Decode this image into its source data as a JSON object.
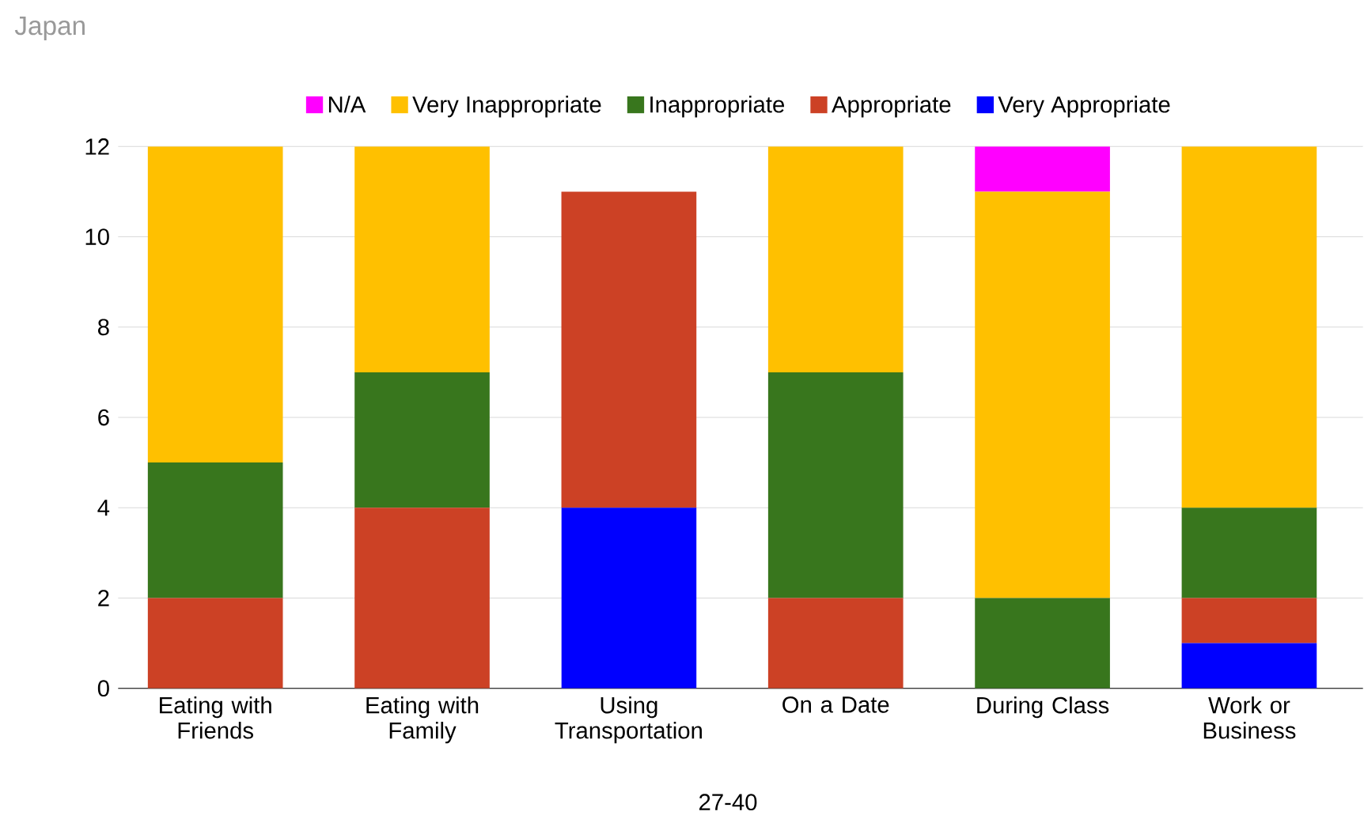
{
  "chart_data": {
    "type": "bar",
    "title": "Japan",
    "xlabel": "27-40",
    "stacked": true,
    "categories": [
      "Eating with Friends",
      "Eating with Family",
      "Using Transportation",
      "On a Date",
      "During Class",
      "Work or Business"
    ],
    "series": [
      {
        "name": "Very Appropriate",
        "color": "#0000ff",
        "values": [
          0,
          0,
          4,
          0,
          0,
          1
        ]
      },
      {
        "name": "Appropriate",
        "color": "#cc4125",
        "values": [
          2,
          4,
          7,
          2,
          0,
          1
        ]
      },
      {
        "name": "Inappropriate",
        "color": "#38761d",
        "values": [
          3,
          3,
          0,
          5,
          2,
          2
        ]
      },
      {
        "name": "Very Inappropriate",
        "color": "#ffc000",
        "values": [
          7,
          5,
          0,
          5,
          9,
          8
        ]
      },
      {
        "name": "N/A",
        "color": "#ff00ff",
        "values": [
          0,
          0,
          0,
          0,
          1,
          0
        ]
      }
    ],
    "ylim": [
      0,
      12
    ],
    "yticks": [
      0,
      2,
      4,
      6,
      8,
      10,
      12
    ],
    "grid": "y",
    "legend": "top"
  }
}
